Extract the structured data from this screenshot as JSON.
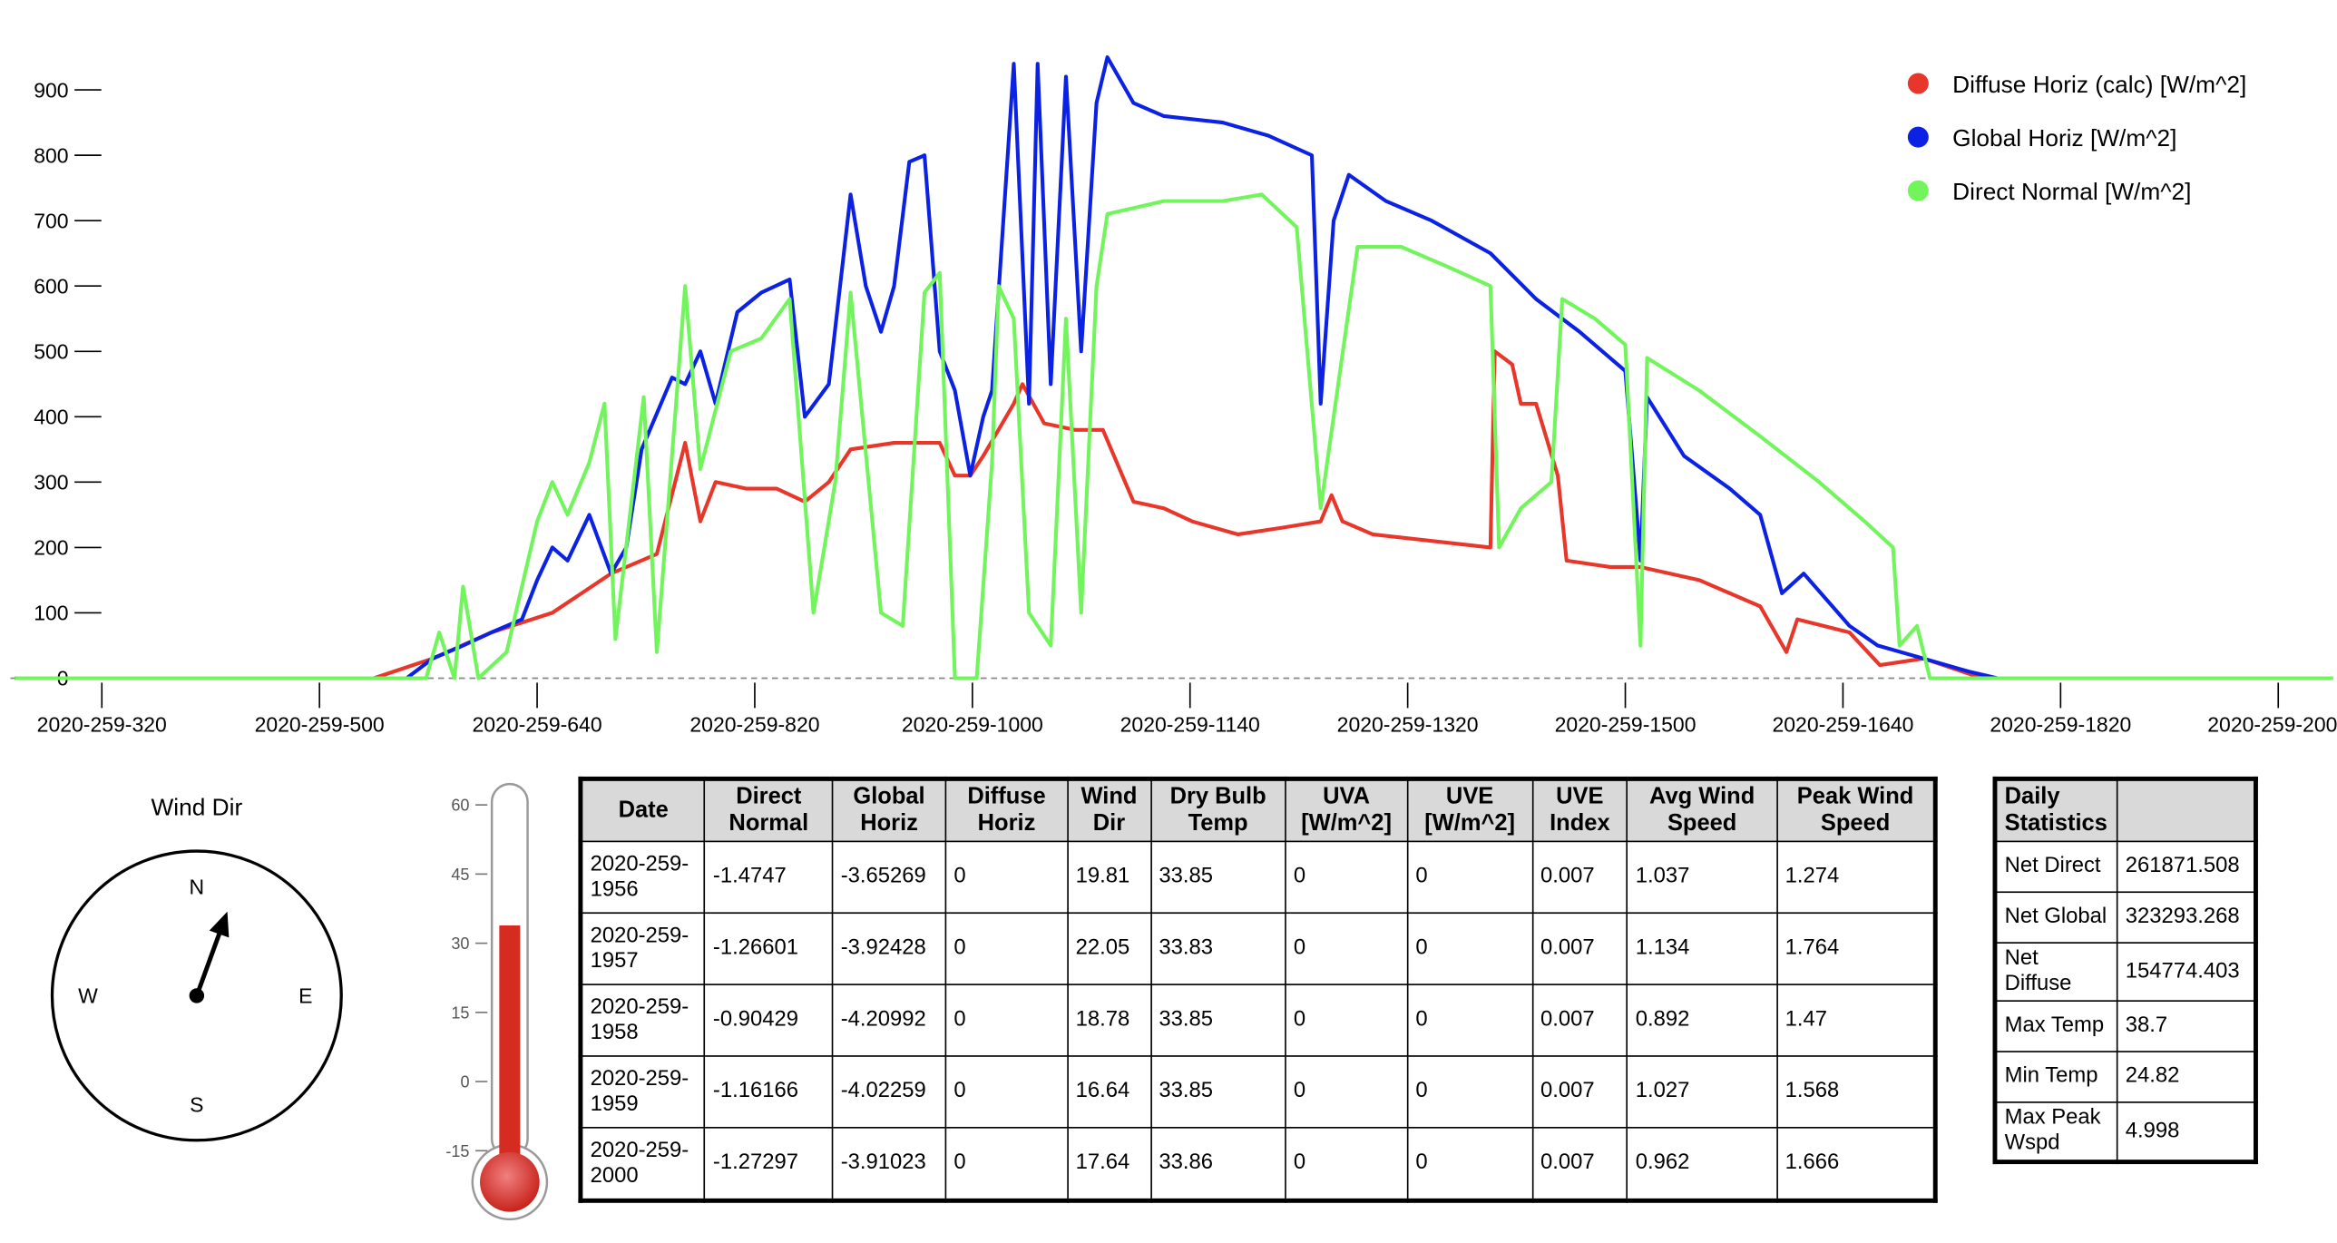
{
  "chart_data": {
    "type": "line",
    "xlim": [
      158,
      1227
    ],
    "ylim": [
      0,
      960
    ],
    "yticks": [
      0,
      100,
      200,
      300,
      400,
      500,
      600,
      700,
      800,
      900
    ],
    "xticks": [
      {
        "value": 200,
        "label": "2020-259-320"
      },
      {
        "value": 300,
        "label": "2020-259-500"
      },
      {
        "value": 400,
        "label": "2020-259-640"
      },
      {
        "value": 500,
        "label": "2020-259-820"
      },
      {
        "value": 600,
        "label": "2020-259-1000"
      },
      {
        "value": 700,
        "label": "2020-259-1140"
      },
      {
        "value": 800,
        "label": "2020-259-1320"
      },
      {
        "value": 900,
        "label": "2020-259-1500"
      },
      {
        "value": 1000,
        "label": "2020-259-1640"
      },
      {
        "value": 1100,
        "label": "2020-259-1820"
      },
      {
        "value": 1200,
        "label": "2020-259-2000"
      }
    ],
    "legend": "upper right",
    "series": [
      {
        "name": "Diffuse Horiz (calc) [W/m^2]",
        "color": "#e8362a",
        "x": [
          160,
          325,
          352,
          379,
          407,
          434,
          455,
          468,
          475,
          482,
          496,
          510,
          523,
          534,
          544,
          564,
          585,
          592,
          599,
          605,
          619,
          623,
          633,
          647,
          660,
          674,
          688,
          701,
          722,
          742,
          760,
          765,
          770,
          784,
          811,
          838,
          840,
          848,
          852,
          859,
          869,
          873,
          893,
          907,
          934,
          962,
          974,
          979,
          1003,
          1017,
          1037,
          1064,
          1225
        ],
        "values": [
          0,
          0,
          30,
          70,
          100,
          160,
          190,
          360,
          240,
          300,
          290,
          290,
          270,
          300,
          350,
          360,
          360,
          310,
          310,
          340,
          420,
          450,
          390,
          380,
          380,
          270,
          260,
          240,
          220,
          230,
          240,
          280,
          240,
          220,
          210,
          200,
          500,
          480,
          420,
          420,
          310,
          180,
          170,
          170,
          150,
          110,
          40,
          90,
          70,
          20,
          30,
          0,
          0
        ]
      },
      {
        "name": "Global Horiz [W/m^2]",
        "color": "#0b22e4",
        "x": [
          160,
          340,
          352,
          366,
          379,
          393,
          400,
          407,
          414,
          424,
          434,
          441,
          448,
          462,
          468,
          475,
          482,
          492,
          503,
          516,
          523,
          534,
          544,
          551,
          558,
          564,
          571,
          578,
          585,
          592,
          599,
          605,
          609,
          619,
          626,
          630,
          636,
          643,
          650,
          657,
          662,
          674,
          688,
          715,
          736,
          756,
          760,
          766,
          773,
          790,
          811,
          838,
          859,
          879,
          900,
          907,
          910,
          927,
          948,
          962,
          972,
          982,
          1003,
          1016,
          1037,
          1058,
          1071,
          1225
        ],
        "values": [
          0,
          0,
          30,
          50,
          70,
          90,
          150,
          200,
          180,
          250,
          160,
          200,
          350,
          460,
          450,
          500,
          420,
          560,
          590,
          610,
          400,
          450,
          740,
          600,
          530,
          600,
          790,
          800,
          500,
          440,
          310,
          400,
          440,
          940,
          420,
          940,
          450,
          920,
          500,
          880,
          950,
          880,
          860,
          850,
          830,
          800,
          420,
          700,
          770,
          730,
          700,
          650,
          580,
          530,
          470,
          180,
          430,
          340,
          290,
          250,
          130,
          160,
          80,
          50,
          30,
          10,
          0,
          0
        ]
      },
      {
        "name": "Direct Normal [W/m^2]",
        "color": "#72f55c",
        "x": [
          160,
          349,
          355,
          362,
          366,
          373,
          386,
          400,
          407,
          414,
          424,
          431,
          436,
          449,
          455,
          468,
          475,
          489,
          503,
          516,
          527,
          537,
          544,
          558,
          568,
          578,
          585,
          592,
          602,
          609,
          612,
          619,
          626,
          636,
          643,
          650,
          657,
          662,
          688,
          715,
          733,
          749,
          760,
          766,
          777,
          797,
          818,
          838,
          842,
          852,
          866,
          871,
          886,
          900,
          907,
          910,
          934,
          962,
          989,
          1010,
          1023,
          1026,
          1034,
          1040,
          1225
        ],
        "values": [
          0,
          0,
          70,
          0,
          140,
          0,
          40,
          240,
          300,
          250,
          330,
          420,
          60,
          430,
          40,
          600,
          320,
          500,
          520,
          580,
          100,
          300,
          590,
          100,
          80,
          590,
          620,
          0,
          0,
          330,
          600,
          550,
          100,
          50,
          550,
          100,
          600,
          710,
          730,
          730,
          740,
          690,
          260,
          400,
          660,
          660,
          630,
          600,
          200,
          260,
          300,
          580,
          550,
          510,
          50,
          490,
          440,
          370,
          300,
          240,
          200,
          50,
          80,
          0,
          0
        ]
      }
    ]
  },
  "wind": {
    "title": "Wind Dir",
    "direction": 20,
    "points": [
      "N",
      "E",
      "S",
      "W"
    ]
  },
  "thermometer": {
    "ylim": [
      -15,
      60
    ],
    "yticks": [
      60,
      45,
      30,
      15,
      0,
      -15
    ],
    "value": 33.86
  },
  "table": {
    "header": [
      "Date",
      "Direct Normal",
      "Global Horiz",
      "Diffuse Horiz",
      "Wind Dir",
      "Dry Bulb Temp",
      "UVA [W/m^2]",
      "UVE [W/m^2]",
      "UVE Index",
      "Avg Wind Speed",
      "Peak Wind Speed"
    ],
    "rows": [
      [
        "2020-259-1956",
        "-1.4747",
        "-3.65269",
        "0",
        "19.81",
        "33.85",
        "0",
        "0",
        "0.007",
        "1.037",
        "1.274"
      ],
      [
        "2020-259-1957",
        "-1.26601",
        "-3.92428",
        "0",
        "22.05",
        "33.83",
        "0",
        "0",
        "0.007",
        "1.134",
        "1.764"
      ],
      [
        "2020-259-1958",
        "-0.90429",
        "-4.20992",
        "0",
        "18.78",
        "33.85",
        "0",
        "0",
        "0.007",
        "0.892",
        "1.47"
      ],
      [
        "2020-259-1959",
        "-1.16166",
        "-4.02259",
        "0",
        "16.64",
        "33.85",
        "0",
        "0",
        "0.007",
        "1.027",
        "1.568"
      ],
      [
        "2020-259-2000",
        "-1.27297",
        "-3.91023",
        "0",
        "17.64",
        "33.86",
        "0",
        "0",
        "0.007",
        "0.962",
        "1.666"
      ]
    ]
  },
  "stats": {
    "header": "Daily Statistics",
    "rows": [
      [
        "Net Direct",
        "261871.508"
      ],
      [
        "Net Global",
        "323293.268"
      ],
      [
        "Net Diffuse",
        "154774.403"
      ],
      [
        "Max Temp",
        "38.7"
      ],
      [
        "Min Temp",
        "24.82"
      ],
      [
        "Max Peak Wspd",
        "4.998"
      ]
    ]
  }
}
